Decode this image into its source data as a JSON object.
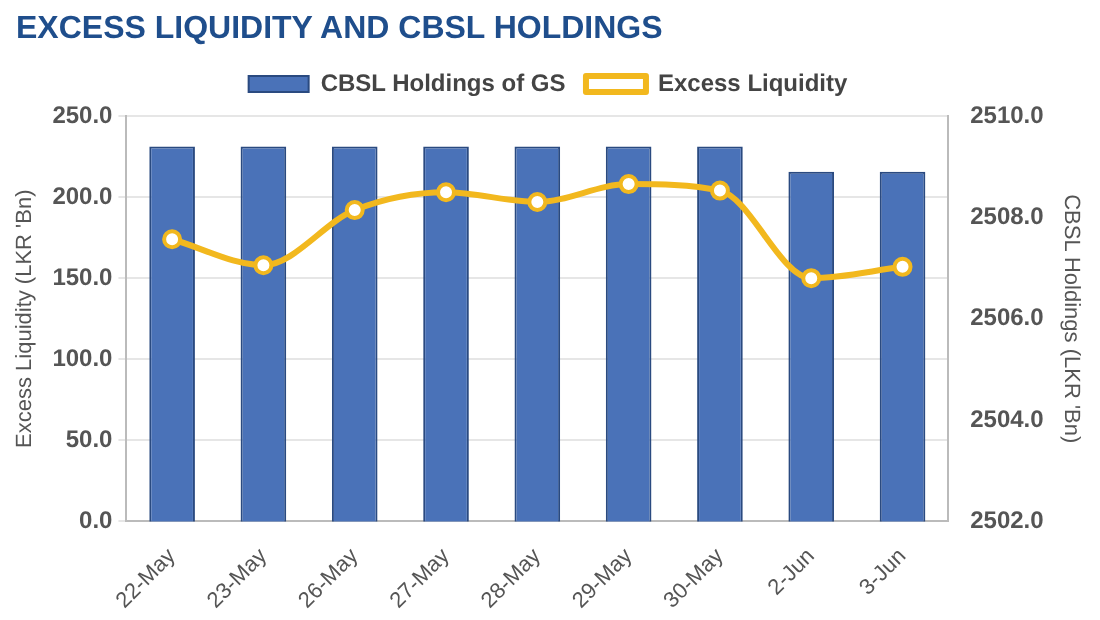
{
  "chart_data": {
    "type": "bar",
    "title": "EXCESS LIQUIDITY AND CBSL HOLDINGS",
    "ylabel": "Excess Liquidity (LKR 'Bn)",
    "y2label": "CBSL Holdings (LKR 'Bn)",
    "categories": [
      "22-May",
      "23-May",
      "26-May",
      "27-May",
      "28-May",
      "29-May",
      "30-May",
      "2-Jun",
      "3-Jun"
    ],
    "series": [
      {
        "name": "CBSL Holdings of GS",
        "axis": "y2",
        "color": "#4a72b8",
        "values": [
          2509.4,
          2509.4,
          2509.4,
          2509.4,
          2509.4,
          2509.4,
          2509.4,
          2508.9,
          2508.9
        ]
      },
      {
        "name": "Excess Liquidity",
        "type": "line",
        "color": "#f2b81e",
        "marker": "circle",
        "values": [
          174,
          158,
          192,
          203,
          197,
          208,
          204,
          150,
          157
        ]
      }
    ],
    "ylim": [
      0,
      250
    ],
    "yticks": [
      {
        "value": 0,
        "label": "0.0"
      },
      {
        "value": 50,
        "label": "50.0"
      },
      {
        "value": 100,
        "label": "100.0"
      },
      {
        "value": 150,
        "label": "150.0"
      },
      {
        "value": 200,
        "label": "200.0"
      },
      {
        "value": 250,
        "label": "250.0"
      }
    ],
    "y2lim": [
      2502,
      2510
    ],
    "y2ticks": [
      {
        "value": 2502,
        "label": "2502.0"
      },
      {
        "value": 2504,
        "label": "2504.0"
      },
      {
        "value": 2506,
        "label": "2506.0"
      },
      {
        "value": 2508,
        "label": "2508.0"
      },
      {
        "value": 2510,
        "label": "2510.0"
      }
    ],
    "grid": "y",
    "legend": "top"
  }
}
